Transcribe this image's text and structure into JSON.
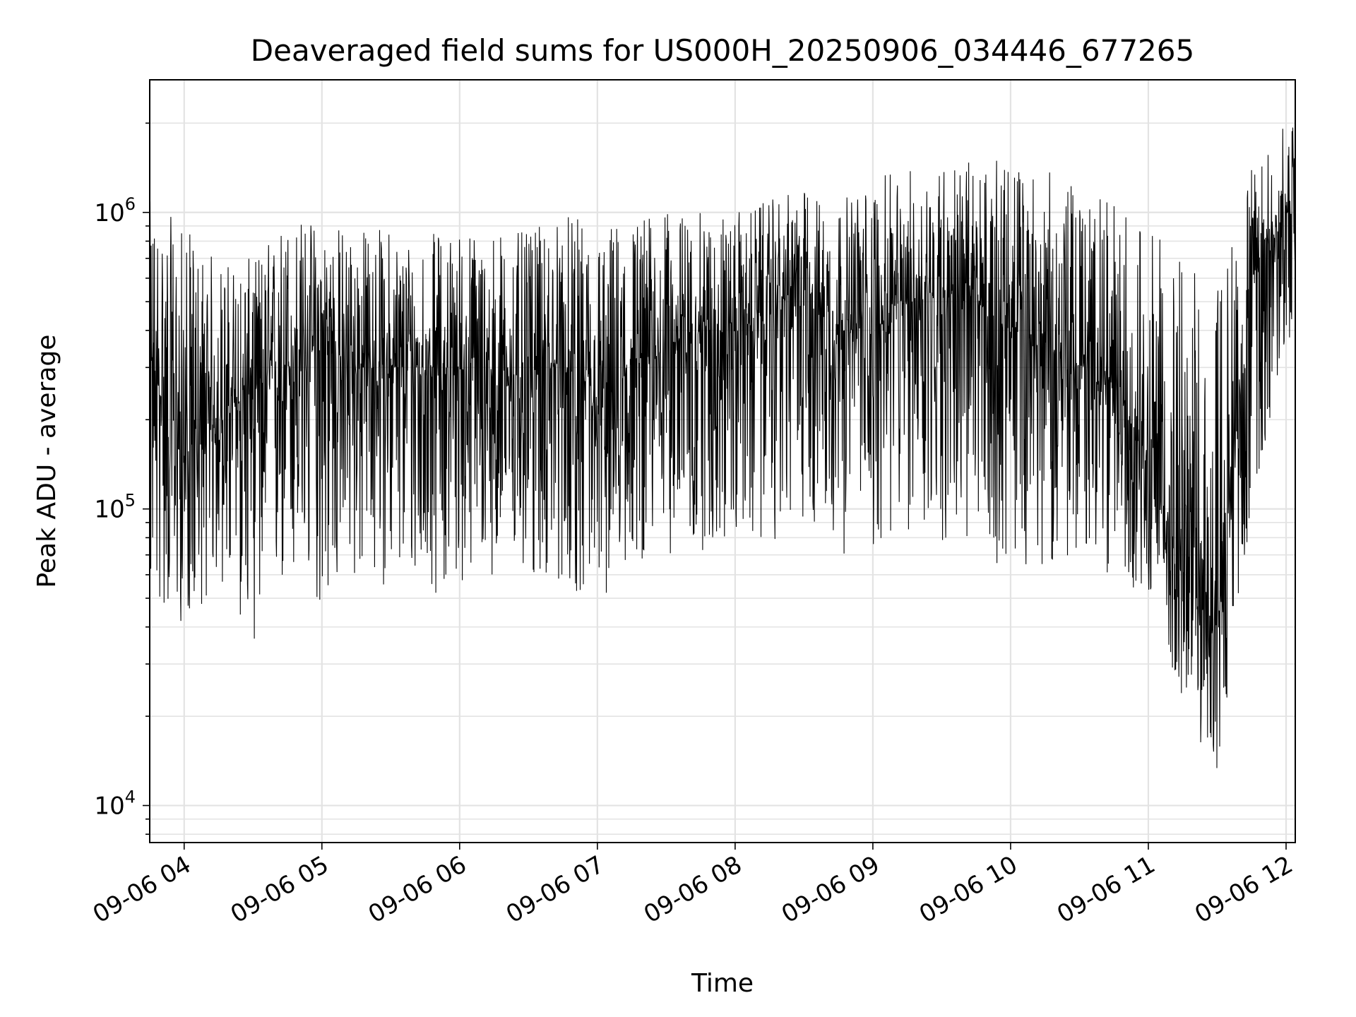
{
  "chart_data": {
    "type": "line",
    "title": "Deaveraged field sums for US000H_20250906_034446_677265",
    "xlabel": "Time",
    "ylabel": "Peak ADU - average",
    "y_scale": "log",
    "ylim": [
      7500,
      2800000
    ],
    "xlim": [
      "2025-09-06 03:45",
      "2025-09-06 12:04"
    ],
    "x_ticks": [
      "09-06 04",
      "09-06 05",
      "09-06 06",
      "09-06 07",
      "09-06 08",
      "09-06 09",
      "09-06 10",
      "09-06 11",
      "09-06 12"
    ],
    "y_ticks": [
      {
        "base": "10",
        "exp": "4",
        "value": 10000
      },
      {
        "base": "10",
        "exp": "5",
        "value": 100000
      },
      {
        "base": "10",
        "exp": "6",
        "value": 1000000
      }
    ],
    "grid": true,
    "line_color": "#000000",
    "series": [
      {
        "x": [
          "2025-09-06 03:45",
          "2025-09-06 04:00",
          "2025-09-06 04:15",
          "2025-09-06 04:30",
          "2025-09-06 04:45",
          "2025-09-06 05:00",
          "2025-09-06 05:15",
          "2025-09-06 05:30",
          "2025-09-06 05:45",
          "2025-09-06 06:00",
          "2025-09-06 06:15",
          "2025-09-06 06:30",
          "2025-09-06 06:45",
          "2025-09-06 07:00",
          "2025-09-06 07:15",
          "2025-09-06 07:30",
          "2025-09-06 07:45",
          "2025-09-06 08:00",
          "2025-09-06 08:15",
          "2025-09-06 08:30",
          "2025-09-06 08:45",
          "2025-09-06 09:00",
          "2025-09-06 09:15",
          "2025-09-06 09:30",
          "2025-09-06 09:45",
          "2025-09-06 10:00",
          "2025-09-06 10:15",
          "2025-09-06 10:30",
          "2025-09-06 10:45",
          "2025-09-06 11:00",
          "2025-09-06 11:15",
          "2025-09-06 11:30",
          "2025-09-06 11:45",
          "2025-09-06 12:00"
        ],
        "min": [
          45000,
          40000,
          55000,
          35000,
          50000,
          45000,
          55000,
          55000,
          50000,
          55000,
          60000,
          55000,
          55000,
          45000,
          65000,
          70000,
          70000,
          75000,
          75000,
          90000,
          70000,
          70000,
          80000,
          75000,
          65000,
          65000,
          65000,
          65000,
          60000,
          50000,
          22000,
          12000,
          100000,
          350000
        ],
        "max": [
          1100000,
          900000,
          700000,
          700000,
          1000000,
          950000,
          900000,
          900000,
          850000,
          900000,
          900000,
          850000,
          1000000,
          900000,
          1000000,
          1000000,
          1000000,
          1000000,
          1100000,
          1200000,
          1100000,
          1300000,
          1400000,
          1500000,
          1500000,
          1500000,
          1400000,
          1200000,
          1100000,
          900000,
          700000,
          600000,
          1400000,
          2000000
        ],
        "typical": [
          300000,
          150000,
          200000,
          250000,
          300000,
          350000,
          300000,
          300000,
          300000,
          300000,
          250000,
          300000,
          300000,
          200000,
          300000,
          350000,
          400000,
          400000,
          450000,
          600000,
          400000,
          400000,
          500000,
          550000,
          500000,
          400000,
          350000,
          300000,
          250000,
          150000,
          60000,
          40000,
          600000,
          1000000
        ]
      }
    ]
  }
}
